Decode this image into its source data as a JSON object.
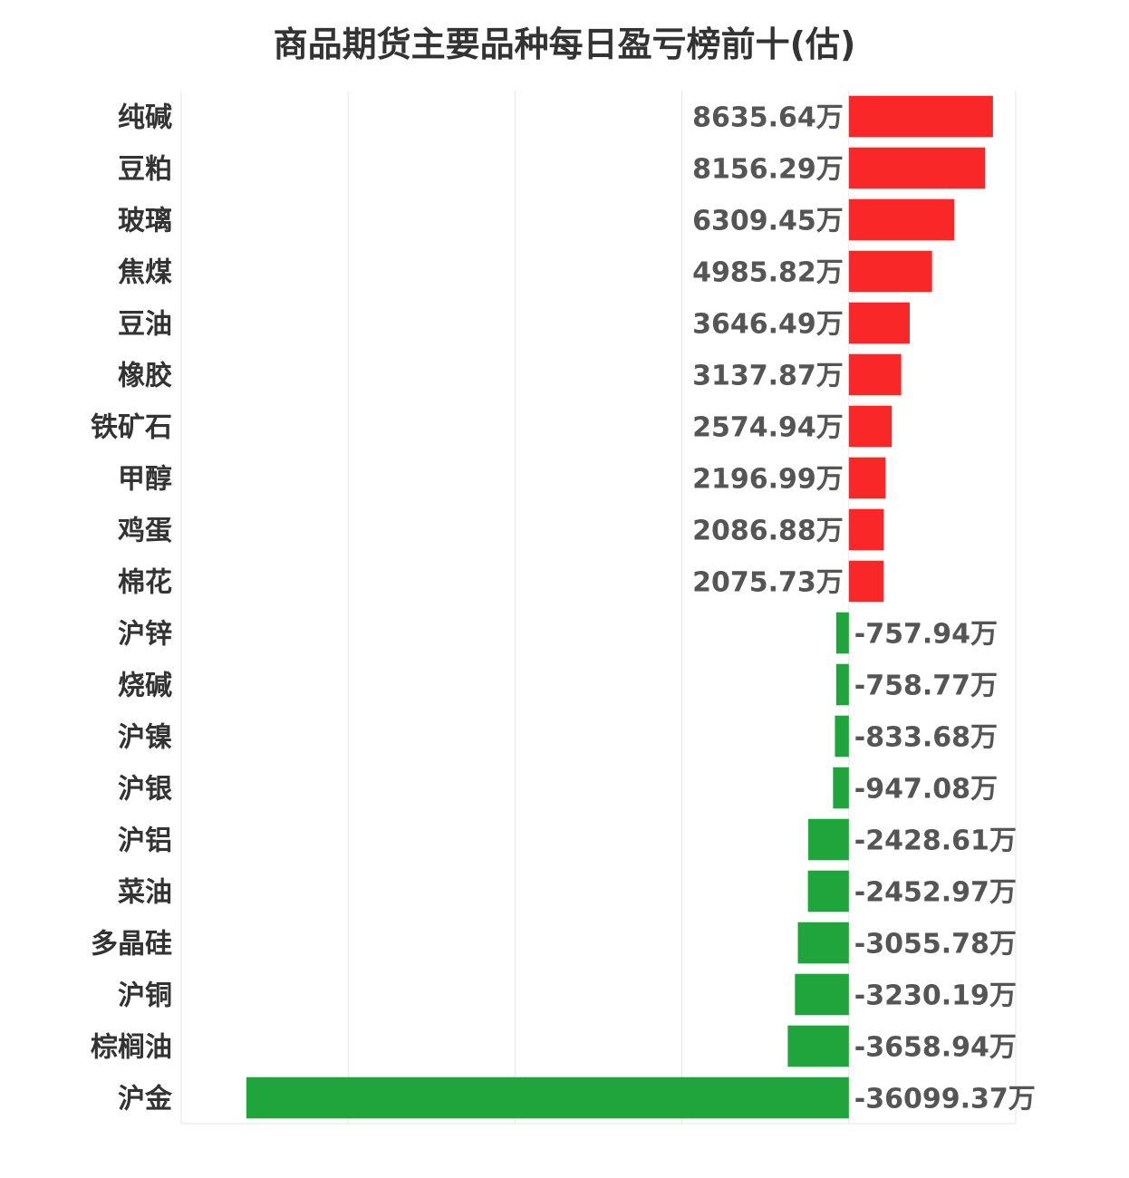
{
  "chart_data": {
    "type": "bar",
    "orientation": "horizontal",
    "title": "商品期货主要品种每日盈亏榜前十(估)",
    "unit": "万",
    "categories": [
      "纯碱",
      "豆粕",
      "玻璃",
      "焦煤",
      "豆油",
      "橡胶",
      "铁矿石",
      "甲醇",
      "鸡蛋",
      "棉花",
      "沪锌",
      "烧碱",
      "沪镍",
      "沪银",
      "沪铝",
      "菜油",
      "多晶硅",
      "沪铜",
      "棕榈油",
      "沪金"
    ],
    "values": [
      8635.64,
      8156.29,
      6309.45,
      4985.82,
      3646.49,
      3137.87,
      2574.94,
      2196.99,
      2086.88,
      2075.73,
      -757.94,
      -758.77,
      -833.68,
      -947.08,
      -2428.61,
      -2452.97,
      -3055.78,
      -3230.19,
      -3658.94,
      -36099.37
    ],
    "labels": [
      "8635.64万",
      "8156.29万",
      "6309.45万",
      "4985.82万",
      "3646.49万",
      "3137.87万",
      "2574.94万",
      "2196.99万",
      "2086.88万",
      "2075.73万",
      "-757.94万",
      "-758.77万",
      "-833.68万",
      "-947.08万",
      "-2428.61万",
      "-2452.97万",
      "-3055.78万",
      "-3230.19万",
      "-3658.94万",
      "-36099.37万"
    ],
    "xlim": [
      -40000,
      10000
    ],
    "grid": true,
    "legend": "none",
    "colors": {
      "positive": "#f92727",
      "negative": "#1fa53c",
      "grid": "#e6e6e6"
    }
  }
}
